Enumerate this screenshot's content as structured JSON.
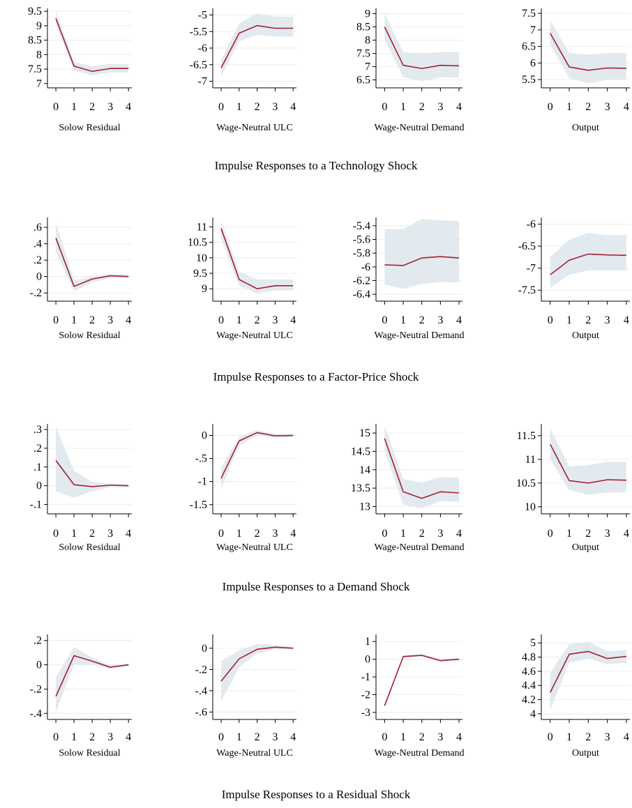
{
  "colors": {
    "line": "#a51d35",
    "band": "#e3eaef",
    "grid": "#ececec",
    "axis": "#000000"
  },
  "x_ticks": [
    "0",
    "1",
    "2",
    "3",
    "4"
  ],
  "chart_data": [
    {
      "title": "Impulse Responses to a Technology Shock",
      "panels": [
        {
          "type": "line",
          "xlabel": "Solow Residual",
          "ylim": [
            6.85,
            9.6
          ],
          "yticks": [
            7,
            7.5,
            8,
            8.5,
            9,
            9.5
          ],
          "ytick_labels": [
            "7",
            "7.5",
            "8",
            "8.5",
            "9",
            "9.5"
          ],
          "x": [
            0,
            1,
            2,
            3,
            4
          ],
          "y": [
            9.25,
            7.6,
            7.42,
            7.52,
            7.52
          ],
          "lower": [
            9.05,
            7.45,
            7.28,
            7.38,
            7.38
          ],
          "upper": [
            9.5,
            7.75,
            7.6,
            7.68,
            7.68
          ]
        },
        {
          "type": "line",
          "xlabel": "Wage-Neutral ULC",
          "ylim": [
            -7.2,
            -4.8
          ],
          "yticks": [
            -7,
            -6.5,
            -6,
            -5.5,
            -5
          ],
          "ytick_labels": [
            "-7",
            "-6.5",
            "-6",
            "-5.5",
            "-5"
          ],
          "x": [
            0,
            1,
            2,
            3,
            4
          ],
          "y": [
            -6.6,
            -5.55,
            -5.32,
            -5.4,
            -5.4
          ],
          "lower": [
            -6.85,
            -5.8,
            -5.6,
            -5.65,
            -5.65
          ],
          "upper": [
            -6.35,
            -5.25,
            -4.95,
            -5.05,
            -5.05
          ]
        },
        {
          "type": "line",
          "xlabel": "Wage-Neutral Demand",
          "ylim": [
            6.2,
            9.2
          ],
          "yticks": [
            6.5,
            7,
            7.5,
            8,
            8.5,
            9
          ],
          "ytick_labels": [
            "6.5",
            "7",
            "7.5",
            "8",
            "8.5",
            "9"
          ],
          "x": [
            0,
            1,
            2,
            3,
            4
          ],
          "y": [
            8.5,
            7.05,
            6.93,
            7.05,
            7.03
          ],
          "lower": [
            8.0,
            6.6,
            6.45,
            6.6,
            6.58
          ],
          "upper": [
            9.0,
            7.55,
            7.5,
            7.55,
            7.55
          ]
        },
        {
          "type": "line",
          "xlabel": "Output",
          "ylim": [
            5.25,
            7.65
          ],
          "yticks": [
            5.5,
            6,
            6.5,
            7,
            7.5
          ],
          "ytick_labels": [
            "5.5",
            "6",
            "6.5",
            "7",
            "7.5"
          ],
          "x": [
            0,
            1,
            2,
            3,
            4
          ],
          "y": [
            6.9,
            5.88,
            5.78,
            5.85,
            5.84
          ],
          "lower": [
            6.55,
            5.55,
            5.38,
            5.5,
            5.5
          ],
          "upper": [
            7.3,
            6.3,
            6.25,
            6.3,
            6.3
          ]
        }
      ]
    },
    {
      "title": "Impulse Responses to a Factor-Price Shock",
      "panels": [
        {
          "type": "line",
          "xlabel": "Solow Residual",
          "ylim": [
            -0.3,
            0.72
          ],
          "yticks": [
            -0.2,
            0,
            0.2,
            0.4,
            0.6
          ],
          "ytick_labels": [
            "-.2",
            "0",
            ".2",
            ".4",
            ".6"
          ],
          "x": [
            0,
            1,
            2,
            3,
            4
          ],
          "y": [
            0.47,
            -0.12,
            -0.03,
            0.01,
            0.0
          ],
          "lower": [
            0.3,
            -0.18,
            -0.07,
            -0.02,
            -0.02
          ],
          "upper": [
            0.66,
            -0.05,
            0.0,
            0.03,
            0.02
          ]
        },
        {
          "type": "line",
          "xlabel": "Wage-Neutral ULC",
          "ylim": [
            8.6,
            11.3
          ],
          "yticks": [
            9,
            9.5,
            10,
            10.5,
            11
          ],
          "ytick_labels": [
            "9",
            "9.5",
            "10",
            "10.5",
            "11"
          ],
          "x": [
            0,
            1,
            2,
            3,
            4
          ],
          "y": [
            10.95,
            9.3,
            9.0,
            9.1,
            9.1
          ],
          "lower": [
            10.6,
            9.1,
            8.85,
            8.95,
            8.95
          ],
          "upper": [
            11.2,
            9.55,
            9.3,
            9.3,
            9.3
          ]
        },
        {
          "type": "line",
          "xlabel": "Wage-Neutral Demand",
          "ylim": [
            -6.5,
            -5.28
          ],
          "yticks": [
            -6.4,
            -6.2,
            -6,
            -5.8,
            -5.6,
            -5.4
          ],
          "ytick_labels": [
            "-6.4",
            "-6.2",
            "-6",
            "-5.8",
            "-5.6",
            "-5.4"
          ],
          "x": [
            0,
            1,
            2,
            3,
            4
          ],
          "y": [
            -5.97,
            -5.98,
            -5.87,
            -5.85,
            -5.87
          ],
          "lower": [
            -6.26,
            -6.32,
            -6.25,
            -6.22,
            -6.23
          ],
          "upper": [
            -5.45,
            -5.45,
            -5.3,
            -5.32,
            -5.33
          ]
        },
        {
          "type": "line",
          "xlabel": "Output",
          "ylim": [
            -7.75,
            -5.85
          ],
          "yticks": [
            -7.5,
            -7,
            -6.5,
            -6
          ],
          "ytick_labels": [
            "-7.5",
            "-7",
            "-6.5",
            "-6"
          ],
          "x": [
            0,
            1,
            2,
            3,
            4
          ],
          "y": [
            -7.15,
            -6.82,
            -6.68,
            -6.7,
            -6.71
          ],
          "lower": [
            -7.45,
            -7.15,
            -7.05,
            -7.05,
            -7.05
          ],
          "upper": [
            -6.75,
            -6.35,
            -6.2,
            -6.25,
            -6.25
          ]
        }
      ]
    },
    {
      "title": "Impulse Responses to a Demand Shock",
      "panels": [
        {
          "type": "line",
          "xlabel": "Solow Residual",
          "ylim": [
            -0.15,
            0.33
          ],
          "yticks": [
            -0.1,
            0,
            0.1,
            0.2,
            0.3
          ],
          "ytick_labels": [
            "-.1",
            "0",
            ".1",
            ".2",
            ".3"
          ],
          "x": [
            0,
            1,
            2,
            3,
            4
          ],
          "y": [
            0.135,
            0.005,
            -0.005,
            0.003,
            0.0
          ],
          "lower": [
            -0.03,
            -0.065,
            -0.03,
            -0.008,
            -0.01
          ],
          "upper": [
            0.315,
            0.08,
            0.02,
            0.01,
            0.008
          ]
        },
        {
          "type": "line",
          "xlabel": "Wage-Neutral ULC",
          "ylim": [
            -1.7,
            0.25
          ],
          "yticks": [
            -1.5,
            -1,
            -0.5,
            0
          ],
          "ytick_labels": [
            "-1.5",
            "-1",
            "-.5",
            "0"
          ],
          "x": [
            0,
            1,
            2,
            3,
            4
          ],
          "y": [
            -0.93,
            -0.12,
            0.06,
            -0.01,
            0.0
          ],
          "lower": [
            -1.15,
            -0.22,
            0.0,
            -0.05,
            -0.04
          ],
          "upper": [
            -0.7,
            -0.03,
            0.12,
            0.03,
            0.03
          ]
        },
        {
          "type": "line",
          "xlabel": "Wage-Neutral Demand",
          "ylim": [
            12.8,
            15.25
          ],
          "yticks": [
            13,
            13.5,
            14,
            14.5,
            15
          ],
          "ytick_labels": [
            "13",
            "13.5",
            "14",
            "14.5",
            "15"
          ],
          "x": [
            0,
            1,
            2,
            3,
            4
          ],
          "y": [
            14.85,
            13.4,
            13.22,
            13.4,
            13.37
          ],
          "lower": [
            14.5,
            13.05,
            12.95,
            13.15,
            13.12
          ],
          "upper": [
            15.2,
            13.75,
            13.65,
            13.8,
            13.78
          ]
        },
        {
          "type": "line",
          "xlabel": "Output",
          "ylim": [
            9.85,
            11.75
          ],
          "yticks": [
            10,
            10.5,
            11,
            11.5
          ],
          "ytick_labels": [
            "10",
            "10.5",
            "11",
            "11.5"
          ],
          "x": [
            0,
            1,
            2,
            3,
            4
          ],
          "y": [
            11.32,
            10.55,
            10.5,
            10.57,
            10.56
          ],
          "lower": [
            11.0,
            10.35,
            10.25,
            10.3,
            10.3
          ],
          "upper": [
            11.65,
            10.85,
            10.88,
            10.95,
            10.95
          ]
        }
      ]
    },
    {
      "title": "Impulse Responses to a Residual Shock",
      "panels": [
        {
          "type": "line",
          "xlabel": "Solow Residual",
          "ylim": [
            -0.45,
            0.25
          ],
          "yticks": [
            -0.4,
            -0.2,
            0,
            0.2
          ],
          "ytick_labels": [
            "-.4",
            "-.2",
            "0",
            ".2"
          ],
          "x": [
            0,
            1,
            2,
            3,
            4
          ],
          "y": [
            -0.26,
            0.075,
            0.03,
            -0.02,
            0.0
          ],
          "lower": [
            -0.39,
            0.0,
            0.0,
            -0.03,
            -0.01
          ],
          "upper": [
            -0.1,
            0.145,
            0.06,
            -0.005,
            0.01
          ]
        },
        {
          "type": "line",
          "xlabel": "Wage-Neutral ULC",
          "ylim": [
            -0.67,
            0.13
          ],
          "yticks": [
            -0.6,
            -0.4,
            -0.2,
            0
          ],
          "ytick_labels": [
            "-.6",
            "-.4",
            "-.2",
            "0"
          ],
          "x": [
            0,
            1,
            2,
            3,
            4
          ],
          "y": [
            -0.31,
            -0.1,
            -0.01,
            0.01,
            0.0
          ],
          "lower": [
            -0.5,
            -0.18,
            -0.05,
            -0.01,
            -0.01
          ],
          "upper": [
            -0.12,
            -0.02,
            0.04,
            0.03,
            0.01
          ]
        },
        {
          "type": "line",
          "xlabel": "Wage-Neutral Demand",
          "ylim": [
            -3.4,
            1.4
          ],
          "yticks": [
            -3,
            -2,
            -1,
            0,
            1
          ],
          "ytick_labels": [
            "-3",
            "-2",
            "-1",
            "0",
            "1"
          ],
          "x": [
            0,
            1,
            2,
            3,
            4
          ],
          "y": [
            -2.62,
            0.15,
            0.22,
            -0.08,
            0.0
          ],
          "lower": [
            -2.72,
            0.08,
            0.15,
            -0.15,
            -0.06
          ],
          "upper": [
            -2.52,
            0.22,
            0.3,
            0.0,
            0.06
          ]
        },
        {
          "type": "line",
          "xlabel": "Output",
          "ylim": [
            3.92,
            5.12
          ],
          "yticks": [
            4,
            4.2,
            4.4,
            4.6,
            4.8,
            5
          ],
          "ytick_labels": [
            "4",
            "4.2",
            "4.4",
            "4.6",
            "4.8",
            "5"
          ],
          "x": [
            0,
            1,
            2,
            3,
            4
          ],
          "y": [
            4.3,
            4.84,
            4.88,
            4.78,
            4.81
          ],
          "lower": [
            4.05,
            4.72,
            4.78,
            4.7,
            4.72
          ],
          "upper": [
            4.58,
            4.98,
            5.02,
            4.88,
            4.9
          ]
        }
      ]
    }
  ]
}
